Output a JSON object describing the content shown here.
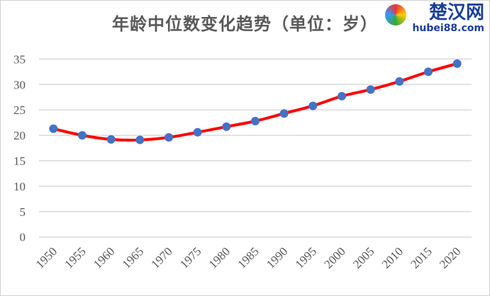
{
  "chart_data": {
    "type": "line",
    "title": "年龄中位数变化趋势（单位：岁）",
    "categories": [
      "1950",
      "1955",
      "1960",
      "1965",
      "1970",
      "1975",
      "1980",
      "1985",
      "1990",
      "1995",
      "2000",
      "2005",
      "2010",
      "2015",
      "2020"
    ],
    "series": [
      {
        "values": [
          21.3,
          20.0,
          19.2,
          19.1,
          19.6,
          20.6,
          21.7,
          22.8,
          24.3,
          25.8,
          27.7,
          29.0,
          30.6,
          32.5,
          34.1
        ],
        "line_color": "#ff0000",
        "marker_color": "#4472c4"
      }
    ],
    "yticks": [
      "0",
      "5",
      "10",
      "15",
      "20",
      "25",
      "30",
      "35"
    ],
    "ylim": [
      0,
      35
    ],
    "grid": true,
    "legend": "none",
    "smooth": true
  },
  "watermark": {
    "cn": "楚汉网",
    "en": "hubei88.com"
  }
}
